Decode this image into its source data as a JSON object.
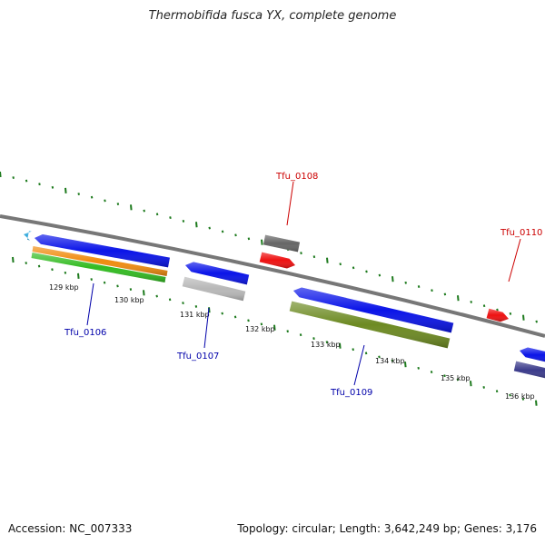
{
  "title": "Thermobifida fusca YX, complete genome",
  "footer": {
    "accession": "Accession: NC_007333",
    "summary": "Topology: circular; Length: 3,642,249 bp; Genes: 3,176"
  },
  "colors": {
    "backbone": "#777777",
    "ticks": "#1d7a1d",
    "forward_label": "#cc0000",
    "reverse_label": "#0000aa",
    "blue": "#0a14e8",
    "red": "#ee1111",
    "orange": "#f08c10",
    "green": "#33bb22",
    "olive": "#6d8a22",
    "gray_dark": "#666666",
    "gray_light": "#b8b8b8",
    "navy": "#3c3c8c",
    "cyan": "#33aadd"
  },
  "scale_labels": [
    "129 kbp",
    "130 kbp",
    "131 kbp",
    "132 kbp",
    "133 kbp",
    "134 kbp",
    "135 kbp",
    "136 kbp"
  ],
  "gene_labels": {
    "tfu_0106": "Tfu_0106",
    "tfu_0107": "Tfu_0107",
    "tfu_0108": "Tfu_0108",
    "tfu_0109": "Tfu_0109",
    "tfu_0110": "Tfu_0110"
  }
}
